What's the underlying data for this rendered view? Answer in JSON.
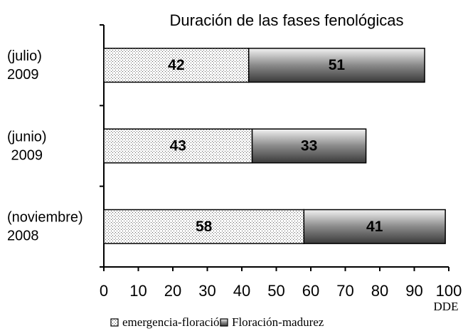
{
  "chart_data": {
    "type": "bar",
    "orientation": "horizontal",
    "stacked": true,
    "title": "Duración de las fases fenológicas",
    "xlabel": "DDE",
    "categories": [
      [
        "(julio)",
        "2009"
      ],
      [
        "(junio)",
        " 2009"
      ],
      [
        "(noviembre)",
        "2008"
      ]
    ],
    "series": [
      {
        "name": "emergencia-floración",
        "color": "#ffffff",
        "values": [
          42,
          43,
          58
        ]
      },
      {
        "name": "Floración-madurez",
        "color": "#8a8a8a",
        "values": [
          51,
          33,
          41
        ]
      }
    ],
    "xlim": [
      0,
      100
    ],
    "xticks": [
      0,
      10,
      20,
      30,
      40,
      50,
      60,
      70,
      80,
      90,
      100
    ]
  }
}
